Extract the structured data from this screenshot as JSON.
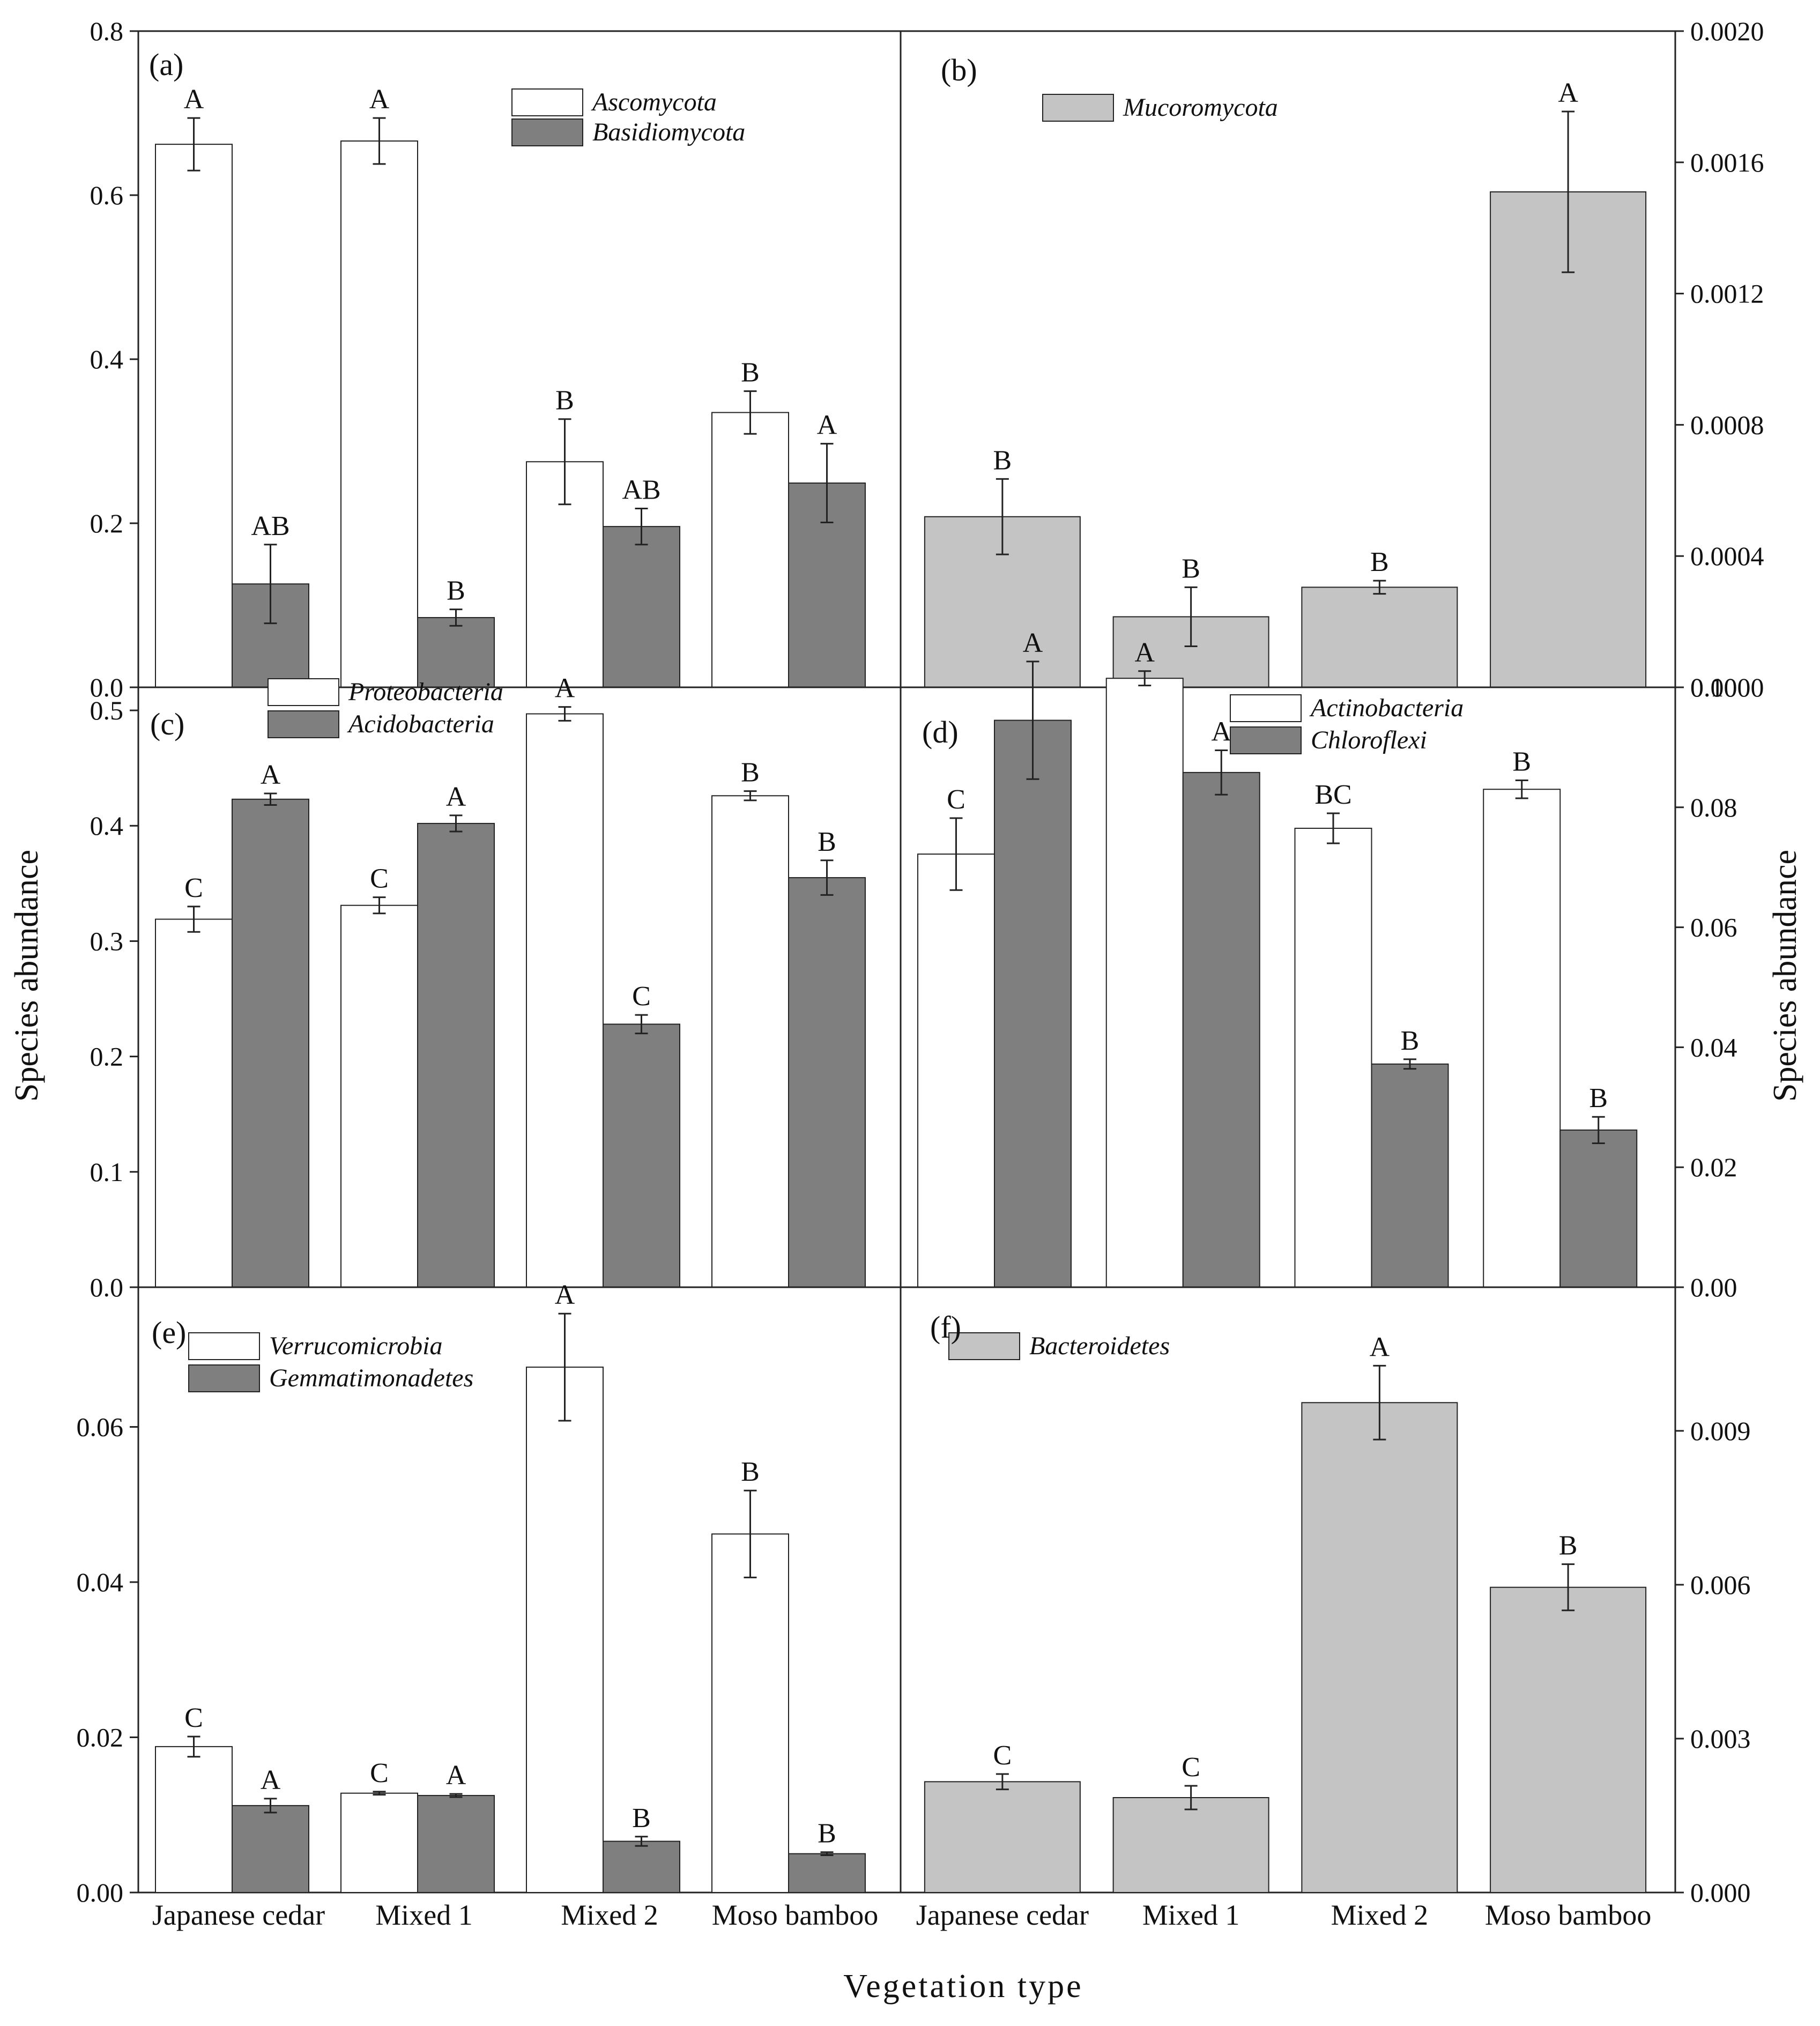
{
  "x_title": "Vegetation type",
  "y_title_left": "Species abundance",
  "y_title_right": "Species abundance",
  "colors": {
    "white": "#ffffff",
    "dark": "#7f7f7f",
    "light": "#c4c4c4",
    "stroke": "#222222"
  },
  "chart_data": [
    {
      "id": "a",
      "panel_label": "(a)",
      "type": "bar",
      "categories": [
        "Japanese cedar",
        "Mixed 1",
        "Mixed 2",
        "Moso bamboo"
      ],
      "ylim": [
        0,
        0.8
      ],
      "yticks": [
        "0.0",
        "0.2",
        "0.4",
        "0.6",
        "0.8"
      ],
      "y_axis_side": "left",
      "series": [
        {
          "name": "Ascomycota",
          "color": "white",
          "values": [
            0.662,
            0.666,
            0.275,
            0.335
          ],
          "errors": [
            0.032,
            0.028,
            0.052,
            0.026
          ],
          "letters": [
            "A",
            "A",
            "B",
            "B"
          ]
        },
        {
          "name": "Basidiomycota",
          "color": "dark",
          "values": [
            0.126,
            0.085,
            0.196,
            0.249
          ],
          "errors": [
            0.048,
            0.01,
            0.022,
            0.048
          ],
          "letters": [
            "AB",
            "B",
            "AB",
            "A"
          ]
        }
      ]
    },
    {
      "id": "b",
      "panel_label": "(b)",
      "type": "bar",
      "categories": [
        "Japanese cedar",
        "Mixed 1",
        "Mixed 2",
        "Moso bamboo"
      ],
      "ylim": [
        0,
        0.002
      ],
      "yticks": [
        "0.0000",
        "0.0004",
        "0.0008",
        "0.0012",
        "0.0016",
        "0.0020"
      ],
      "y_axis_side": "right",
      "series": [
        {
          "name": "Mucoromycota",
          "color": "light",
          "values": [
            0.00052,
            0.000215,
            0.000305,
            0.00151
          ],
          "errors": [
            0.000115,
            9e-05,
            2e-05,
            0.000245
          ],
          "letters": [
            "B",
            "B",
            "B",
            "A"
          ]
        }
      ]
    },
    {
      "id": "c",
      "panel_label": "(c)",
      "type": "bar",
      "categories": [
        "Japanese cedar",
        "Mixed 1",
        "Mixed 2",
        "Moso bamboo"
      ],
      "ylim": [
        0,
        0.52
      ],
      "yticks": [
        "0.0",
        "0.1",
        "0.2",
        "0.3",
        "0.4",
        "0.5"
      ],
      "y_axis_side": "left",
      "series": [
        {
          "name": "Proteobacteria",
          "color": "white",
          "values": [
            0.319,
            0.331,
            0.497,
            0.426
          ],
          "errors": [
            0.011,
            0.007,
            0.006,
            0.004
          ],
          "letters": [
            "C",
            "C",
            "A",
            "B"
          ]
        },
        {
          "name": "Acidobacteria",
          "color": "dark",
          "values": [
            0.423,
            0.402,
            0.228,
            0.355
          ],
          "errors": [
            0.005,
            0.007,
            0.008,
            0.015
          ],
          "letters": [
            "A",
            "A",
            "C",
            "B"
          ]
        }
      ]
    },
    {
      "id": "d",
      "panel_label": "(d)",
      "type": "bar",
      "categories": [
        "Japanese cedar",
        "Mixed 1",
        "Mixed 2",
        "Moso bamboo"
      ],
      "ylim": [
        0,
        0.1
      ],
      "yticks": [
        "0.00",
        "0.02",
        "0.04",
        "0.06",
        "0.08",
        "0.10"
      ],
      "y_axis_side": "right",
      "series": [
        {
          "name": "Actinobacteria",
          "color": "white",
          "values": [
            0.0722,
            0.1015,
            0.0765,
            0.083
          ],
          "errors": [
            0.006,
            0.0012,
            0.0025,
            0.0015
          ],
          "letters": [
            "C",
            "A",
            "BC",
            "B"
          ]
        },
        {
          "name": "Chloroflexi",
          "color": "dark",
          "values": [
            0.0945,
            0.0858,
            0.0372,
            0.0262
          ],
          "errors": [
            0.0098,
            0.0037,
            0.0008,
            0.0022
          ],
          "letters": [
            "A",
            "A",
            "B",
            "B"
          ]
        }
      ]
    },
    {
      "id": "e",
      "panel_label": "(e)",
      "type": "bar",
      "categories": [
        "Japanese cedar",
        "Mixed 1",
        "Mixed 2",
        "Moso bamboo"
      ],
      "ylim": [
        0,
        0.078
      ],
      "yticks": [
        "0.00",
        "0.02",
        "0.04",
        "0.06"
      ],
      "y_axis_side": "left",
      "series": [
        {
          "name": "Verrucomicrobia",
          "color": "white",
          "values": [
            0.0188,
            0.0128,
            0.0677,
            0.0462
          ],
          "errors": [
            0.0013,
            0.0002,
            0.0069,
            0.0056
          ],
          "letters": [
            "C",
            "C",
            "A",
            "B"
          ]
        },
        {
          "name": "Gemmatimonadetes",
          "color": "dark",
          "values": [
            0.0112,
            0.0125,
            0.0066,
            0.005
          ],
          "errors": [
            0.0009,
            0.0002,
            0.0006,
            0.0002
          ],
          "letters": [
            "A",
            "A",
            "B",
            "B"
          ]
        }
      ]
    },
    {
      "id": "f",
      "panel_label": "(f)",
      "type": "bar",
      "categories": [
        "Japanese cedar",
        "Mixed 1",
        "Mixed 2",
        "Moso bamboo"
      ],
      "ylim": [
        0,
        0.0118
      ],
      "yticks": [
        "0.000",
        "0.003",
        "0.006",
        "0.009"
      ],
      "y_axis_side": "right",
      "series": [
        {
          "name": "Bacteroidetes",
          "color": "light",
          "values": [
            0.00216,
            0.00185,
            0.00955,
            0.00595
          ],
          "errors": [
            0.00015,
            0.00023,
            0.00072,
            0.00045
          ],
          "letters": [
            "C",
            "C",
            "A",
            "B"
          ]
        }
      ]
    }
  ]
}
